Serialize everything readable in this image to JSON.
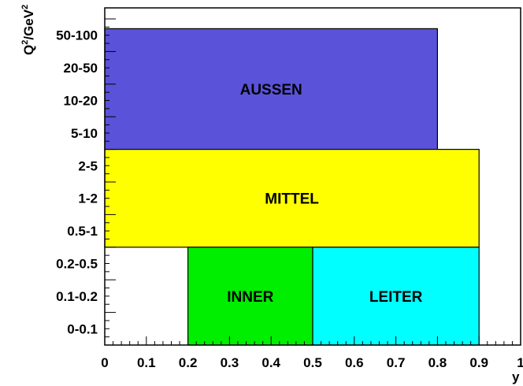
{
  "chart_data": {
    "type": "region-map",
    "xlabel": "y",
    "ylabel": {
      "base": "Q",
      "sup1": "2",
      "mid": "/GeV",
      "sup2": "2"
    },
    "xlim": [
      0,
      1
    ],
    "x_ticks": [
      "0",
      "0.1",
      "0.2",
      "0.3",
      "0.4",
      "0.5",
      "0.6",
      "0.7",
      "0.8",
      "0.9",
      "1"
    ],
    "y_categories": [
      "0-0.1",
      "0.1-0.2",
      "0.2-0.5",
      "0.5-1",
      "1-2",
      "2-5",
      "5-10",
      "10-20",
      "20-50",
      "50-100"
    ],
    "regions": [
      {
        "name": "AUSSEN",
        "x": [
          0,
          0.8
        ],
        "y_bins": [
          6,
          9.7
        ],
        "color": "#5a52d8"
      },
      {
        "name": "MITTEL",
        "x": [
          0,
          0.9
        ],
        "y_bins": [
          3,
          6
        ],
        "color": "#ffff00"
      },
      {
        "name": "INNER",
        "x": [
          0.2,
          0.5
        ],
        "y_bins": [
          0,
          3
        ],
        "color": "#00ee00"
      },
      {
        "name": "LEITER",
        "x": [
          0.5,
          0.9
        ],
        "y_bins": [
          0,
          3
        ],
        "color": "#00ffff"
      }
    ],
    "grid": false
  }
}
